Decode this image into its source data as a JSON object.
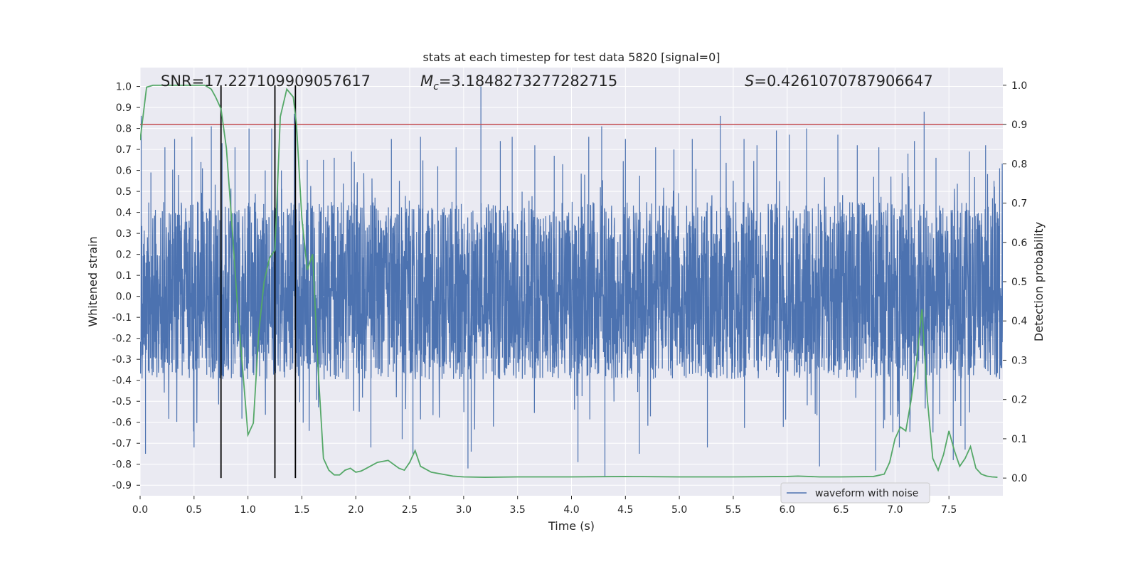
{
  "chart_data": {
    "type": "line",
    "title": "stats at each timestep for test data 5820 [signal=0]",
    "xlabel": "Time (s)",
    "ylabel": "Whitened strain",
    "y2label": "Detection probability",
    "xlim": [
      0.0,
      8.0
    ],
    "ylim": [
      -0.95,
      1.09
    ],
    "y2lim": [
      -0.045,
      1.045
    ],
    "x_ticks": [
      "0.0",
      "0.5",
      "1.0",
      "1.5",
      "2.0",
      "2.5",
      "3.0",
      "3.5",
      "4.0",
      "4.5",
      "5.0",
      "5.5",
      "6.0",
      "6.5",
      "7.0",
      "7.5"
    ],
    "x_tick_values": [
      0,
      0.5,
      1,
      1.5,
      2,
      2.5,
      3,
      3.5,
      4,
      4.5,
      5,
      5.5,
      6,
      6.5,
      7,
      7.5
    ],
    "y_ticks": [
      "1.0",
      "0.9",
      "0.8",
      "0.7",
      "0.6",
      "0.5",
      "0.4",
      "0.3",
      "0.2",
      "0.1",
      "0.0",
      "-0.1",
      "-0.2",
      "-0.3",
      "-0.4",
      "-0.5",
      "-0.6",
      "-0.7",
      "-0.8",
      "-0.9"
    ],
    "y_tick_values": [
      1.0,
      0.9,
      0.8,
      0.7,
      0.6,
      0.5,
      0.4,
      0.3,
      0.2,
      0.1,
      0.0,
      -0.1,
      -0.2,
      -0.3,
      -0.4,
      -0.5,
      -0.6,
      -0.7,
      -0.8,
      -0.9
    ],
    "y2_ticks": [
      "1.0",
      "0.9",
      "0.8",
      "0.7",
      "0.6",
      "0.5",
      "0.4",
      "0.3",
      "0.2",
      "0.1",
      "0.0"
    ],
    "y2_tick_values": [
      1.0,
      0.9,
      0.8,
      0.7,
      0.6,
      0.5,
      0.4,
      0.3,
      0.2,
      0.1,
      0.0
    ],
    "grid": true,
    "legend": {
      "placement": "lower-right",
      "entries": [
        "waveform with noise"
      ]
    },
    "annotations": {
      "snr": "SNR=17.227109909057617",
      "mc_symbol": "M",
      "mc_sub": "c",
      "mc_value": "=3.1848273277282715",
      "s_symbol": "S",
      "s_value": "=0.4261070787906647"
    },
    "threshold": {
      "y2": 0.9,
      "color": "#c44e52"
    },
    "vlines": [
      0.75,
      1.25,
      1.44
    ],
    "vline_range_y2": [
      0.0,
      1.0
    ],
    "series": [
      {
        "name": "waveform with noise",
        "color": "#4c72b0",
        "kind": "noise",
        "typical_envelope": [
          -0.36,
          0.41
        ],
        "peaks": [
          [
            0.01,
            0.86
          ],
          [
            0.05,
            -0.75
          ],
          [
            0.1,
            0.59
          ],
          [
            0.23,
            0.71
          ],
          [
            0.32,
            0.75
          ],
          [
            0.48,
            0.76
          ],
          [
            0.5,
            -0.72
          ],
          [
            0.66,
            0.81
          ],
          [
            0.76,
            0.73
          ],
          [
            0.88,
            0.71
          ],
          [
            1.01,
            0.8
          ],
          [
            1.16,
            0.6
          ],
          [
            1.22,
            0.8
          ],
          [
            1.31,
            0.6
          ],
          [
            1.43,
            0.87
          ],
          [
            1.55,
            0.65
          ],
          [
            1.7,
            0.65
          ],
          [
            1.8,
            0.66
          ],
          [
            1.96,
            0.69
          ],
          [
            2.14,
            -0.72
          ],
          [
            2.33,
            0.75
          ],
          [
            2.43,
            -0.68
          ],
          [
            2.53,
            -0.75
          ],
          [
            2.6,
            0.76
          ],
          [
            2.76,
            0.62
          ],
          [
            2.93,
            0.71
          ],
          [
            3.04,
            -0.82
          ],
          [
            3.07,
            -0.74
          ],
          [
            3.16,
            1.0
          ],
          [
            3.34,
            0.74
          ],
          [
            3.45,
            0.76
          ],
          [
            3.66,
            0.72
          ],
          [
            3.84,
            0.67
          ],
          [
            4.06,
            -0.79
          ],
          [
            4.16,
            0.76
          ],
          [
            4.28,
            0.81
          ],
          [
            4.31,
            -0.86
          ],
          [
            4.5,
            0.75
          ],
          [
            4.63,
            -0.75
          ],
          [
            4.78,
            0.71
          ],
          [
            4.95,
            0.7
          ],
          [
            5.12,
            0.75
          ],
          [
            5.26,
            -0.72
          ],
          [
            5.38,
            0.86
          ],
          [
            5.6,
            0.75
          ],
          [
            5.72,
            0.72
          ],
          [
            5.9,
            0.79
          ],
          [
            6.02,
            0.77
          ],
          [
            6.18,
            0.8
          ],
          [
            6.3,
            -0.81
          ],
          [
            6.47,
            0.77
          ],
          [
            6.65,
            0.72
          ],
          [
            6.82,
            -0.83
          ],
          [
            6.85,
            0.71
          ],
          [
            7.04,
            -0.72
          ],
          [
            7.12,
            0.68
          ],
          [
            7.18,
            0.74
          ],
          [
            7.27,
            0.88
          ],
          [
            7.38,
            0.66
          ],
          [
            7.54,
            -0.78
          ],
          [
            7.65,
            -0.73
          ],
          [
            7.69,
            0.69
          ],
          [
            7.84,
            0.72
          ],
          [
            7.97,
            0.61
          ]
        ]
      },
      {
        "name": "",
        "color": "#55a868",
        "kind": "probability",
        "axis": "y2",
        "x": [
          0.0,
          0.06,
          0.12,
          0.2,
          0.3,
          0.4,
          0.5,
          0.6,
          0.66,
          0.7,
          0.75,
          0.8,
          0.85,
          0.9,
          0.95,
          1.0,
          1.05,
          1.1,
          1.15,
          1.2,
          1.25,
          1.3,
          1.36,
          1.42,
          1.45,
          1.5,
          1.55,
          1.6,
          1.65,
          1.7,
          1.75,
          1.8,
          1.85,
          1.9,
          1.95,
          2.0,
          2.05,
          2.1,
          2.2,
          2.3,
          2.4,
          2.45,
          2.5,
          2.55,
          2.6,
          2.7,
          2.8,
          2.9,
          3.0,
          3.2,
          3.5,
          4.0,
          4.5,
          5.0,
          5.5,
          6.0,
          6.1,
          6.3,
          6.5,
          6.8,
          6.9,
          6.95,
          7.0,
          7.05,
          7.1,
          7.15,
          7.2,
          7.25,
          7.3,
          7.35,
          7.4,
          7.45,
          7.5,
          7.55,
          7.6,
          7.65,
          7.7,
          7.75,
          7.8,
          7.85,
          7.9,
          7.95
        ],
        "y": [
          0.86,
          0.995,
          1.0,
          1.0,
          1.0,
          1.0,
          1.0,
          1.0,
          0.99,
          0.97,
          0.94,
          0.84,
          0.65,
          0.45,
          0.28,
          0.11,
          0.14,
          0.37,
          0.5,
          0.56,
          0.58,
          0.92,
          0.99,
          0.97,
          0.9,
          0.66,
          0.53,
          0.57,
          0.28,
          0.05,
          0.02,
          0.008,
          0.008,
          0.02,
          0.025,
          0.015,
          0.018,
          0.025,
          0.04,
          0.045,
          0.025,
          0.02,
          0.04,
          0.07,
          0.03,
          0.015,
          0.01,
          0.005,
          0.003,
          0.002,
          0.003,
          0.003,
          0.004,
          0.003,
          0.003,
          0.004,
          0.005,
          0.003,
          0.003,
          0.004,
          0.01,
          0.04,
          0.1,
          0.13,
          0.12,
          0.2,
          0.3,
          0.43,
          0.2,
          0.05,
          0.02,
          0.06,
          0.12,
          0.07,
          0.03,
          0.05,
          0.08,
          0.025,
          0.01,
          0.005,
          0.003,
          0.002
        ]
      }
    ]
  }
}
